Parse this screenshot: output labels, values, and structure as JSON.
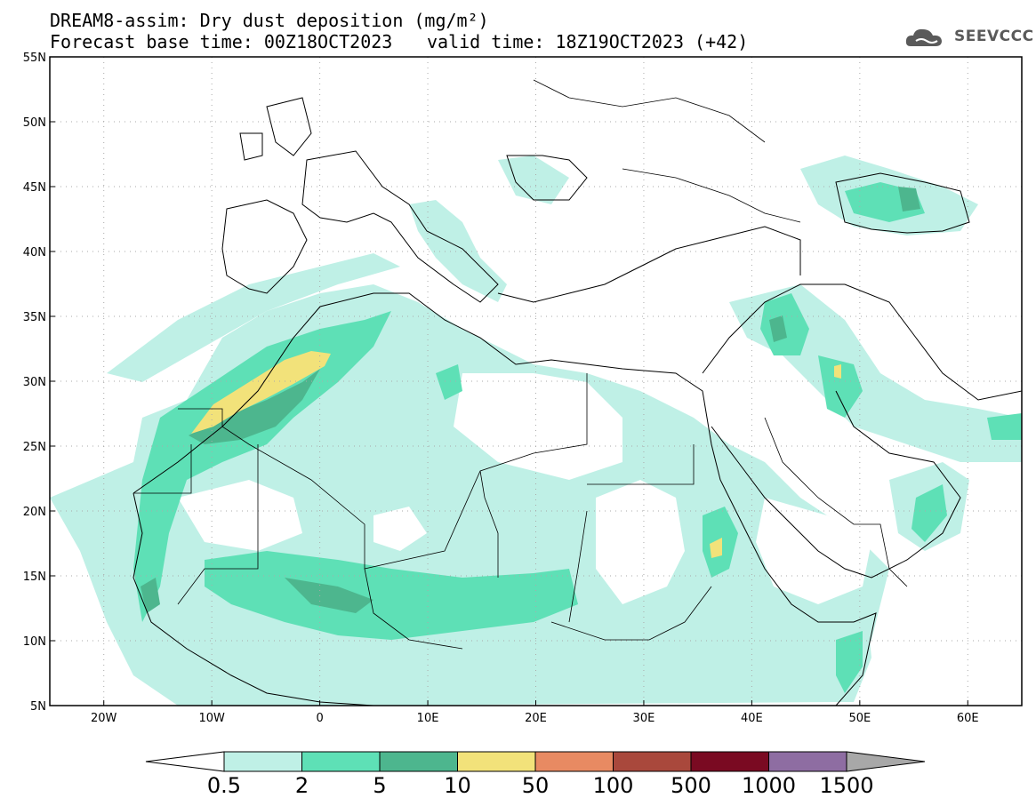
{
  "header": {
    "title": "DREAM8-assim: Dry dust deposition (mg/m²)",
    "forecast": "Forecast base time: 00Z18OCT2023",
    "valid": "valid time: 18Z19OCT2023 (+42)",
    "logo_text": "SEEVCCC"
  },
  "map": {
    "lat_labels": [
      "55N",
      "50N",
      "45N",
      "40N",
      "35N",
      "30N",
      "25N",
      "20N",
      "15N",
      "10N",
      "5N"
    ],
    "lat_values": [
      55,
      50,
      45,
      40,
      35,
      30,
      25,
      20,
      15,
      10,
      5
    ],
    "lon_labels": [
      "20W",
      "10W",
      "0",
      "10E",
      "20E",
      "30E",
      "40E",
      "50E",
      "60E"
    ],
    "lon_values": [
      -20,
      -10,
      0,
      10,
      20,
      30,
      40,
      50,
      60
    ],
    "lon_range": [
      -25,
      65
    ],
    "lat_range": [
      5,
      55
    ],
    "grid": true
  },
  "colorbar": {
    "labels": [
      "0.5",
      "2",
      "5",
      "10",
      "50",
      "100",
      "500",
      "1000",
      "1500"
    ],
    "colors": [
      "#bff0e6",
      "#5ee0b6",
      "#4db68e",
      "#f2e27a",
      "#e88a62",
      "#a9483c",
      "#7a0a22",
      "#8e6da2"
    ],
    "under_color": "#ffffff",
    "over_color": "#a8a8a8"
  }
}
